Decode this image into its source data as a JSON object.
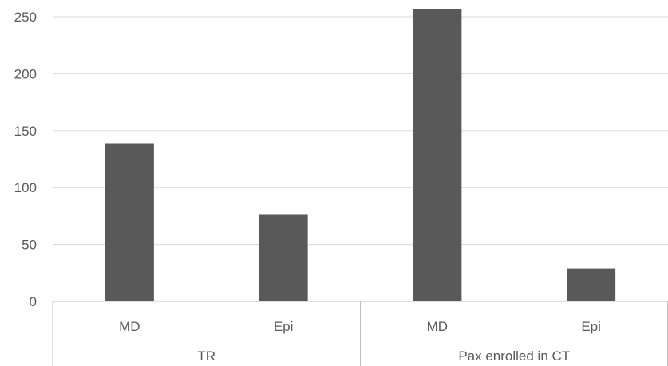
{
  "chart_data": {
    "type": "bar",
    "title": "",
    "xlabel": "",
    "ylabel": "",
    "ylim": [
      0,
      250
    ],
    "yticks": [
      0,
      50,
      100,
      150,
      200,
      250
    ],
    "grid": true,
    "legend": "none",
    "groups": [
      {
        "label": "TR",
        "categories": [
          "MD",
          "Epi"
        ]
      },
      {
        "label": "Pax enrolled in CT",
        "categories": [
          "MD",
          "Epi"
        ]
      }
    ],
    "categories": [
      "MD",
      "Epi",
      "MD",
      "Epi"
    ],
    "values": [
      139,
      76,
      257,
      29
    ],
    "colors": {
      "bar": "#595959",
      "grid": "#d9d9d9",
      "axis": "#bfbfbf"
    }
  }
}
